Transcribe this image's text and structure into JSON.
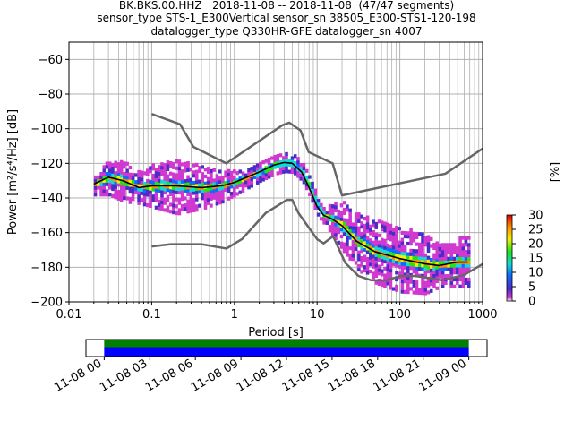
{
  "figure": {
    "title_lines": [
      "BK.BKS.00.HHZ   2018-11-08 -- 2018-11-08  (47/47 segments)",
      "sensor_type STS-1_E300Vertical sensor_sn 38505_E300-STS1-120-198",
      "datalogger_type Q330HR-GFE datalogger_sn 4007"
    ]
  },
  "chart_data": [
    {
      "type": "heatmap",
      "xlabel": "Period [s]",
      "ylabel": "Power [m²/s⁴/Hz] [dB]",
      "xscale": "log",
      "xlim": [
        0.01,
        1000
      ],
      "ylim": [
        -200,
        -50
      ],
      "xticks": [
        0.01,
        0.1,
        1,
        10,
        100,
        1000
      ],
      "xtick_labels": [
        "0.01",
        "0.1",
        "1",
        "10",
        "100",
        "1000"
      ],
      "yticks": [
        -200,
        -180,
        -160,
        -140,
        -120,
        -100,
        -80,
        -60
      ],
      "ytick_labels": [
        "−200",
        "−180",
        "−160",
        "−140",
        "−120",
        "−100",
        "−80",
        "−60"
      ],
      "grid": true,
      "colorbar": {
        "label": "[%]",
        "range": [
          0,
          30
        ],
        "ticks": [
          0,
          5,
          10,
          15,
          20,
          25,
          30
        ],
        "colors": [
          "#ffffff",
          "#d038d0",
          "#4a2cc8",
          "#0d6cff",
          "#14d8d8",
          "#1ee31e",
          "#f0f000",
          "#ff8c00",
          "#e00000"
        ]
      },
      "noise_model_high": {
        "color": "#666666",
        "period": [
          0.1,
          0.22,
          0.32,
          0.8,
          3.8,
          4.6,
          6.3,
          7.9,
          15.4,
          20,
          354.8,
          1000
        ],
        "db": [
          -91.5,
          -97.4,
          -110.5,
          -120,
          -98,
          -96.5,
          -101,
          -113.5,
          -120,
          -138.5,
          -126,
          -111.5
        ]
      },
      "noise_model_low": {
        "color": "#666666",
        "period": [
          0.1,
          0.17,
          0.4,
          0.8,
          1.24,
          2.4,
          4.3,
          5.0,
          6.0,
          10.0,
          12.0,
          15.6,
          21.9,
          31.6,
          45,
          70,
          101,
          154,
          328,
          600,
          1000
        ],
        "db": [
          -168,
          -166.7,
          -166.7,
          -169.2,
          -163.7,
          -148.6,
          -141.1,
          -141.1,
          -149.0,
          -163.8,
          -166.2,
          -162.1,
          -177.5,
          -185.0,
          -187.5,
          -187.5,
          -185.0,
          -185.0,
          -187.5,
          -184.4,
          -178.2
        ]
      },
      "mode_curve": {
        "color": "#000000",
        "period": [
          0.02,
          0.03,
          0.045,
          0.07,
          0.1,
          0.2,
          0.4,
          0.7,
          1.0,
          2.0,
          3.0,
          4.0,
          5.0,
          6.5,
          8.0,
          10.0,
          12.0,
          15.0,
          20.0,
          30.0,
          50.0,
          100.0,
          200.0,
          300.0,
          500.0,
          660.0
        ],
        "db": [
          -132,
          -128,
          -130,
          -134,
          -133,
          -133,
          -134,
          -133,
          -131,
          -125,
          -121,
          -119.5,
          -120,
          -125,
          -134,
          -145,
          -150,
          -152,
          -156,
          -165,
          -171,
          -175,
          -178,
          -179,
          -177,
          -177
        ]
      },
      "psd_bands": {
        "period": [
          0.02,
          0.03,
          0.045,
          0.07,
          0.1,
          0.2,
          0.4,
          0.7,
          1.0,
          2.0,
          3.0,
          4.0,
          5.0,
          6.5,
          8.0,
          10.0,
          12.0,
          15.0,
          20.0,
          30.0,
          50.0,
          100.0,
          200.0,
          300.0,
          500.0,
          660.0
        ],
        "inner_db": [
          3,
          4,
          4,
          3,
          4,
          4,
          4,
          3,
          3,
          2,
          2,
          2,
          2,
          2,
          2,
          2,
          2,
          3,
          4,
          4,
          5,
          5,
          5,
          4,
          4,
          4
        ],
        "outer_db": [
          3,
          6,
          8,
          6,
          8,
          12,
          8,
          6,
          4,
          3,
          3,
          3,
          3,
          3,
          3,
          3,
          3,
          6,
          10,
          12,
          13,
          14,
          12,
          8,
          10,
          10
        ]
      }
    },
    {
      "type": "timeline",
      "x_labels": [
        "11-08 00",
        "11-08 03",
        "11-08 06",
        "11-08 09",
        "11-08 12",
        "11-08 15",
        "11-08 18",
        "11-08 21",
        "11-09 00"
      ],
      "hours": [
        0,
        3,
        6,
        9,
        12,
        15,
        18,
        21,
        24
      ],
      "xlim_hours": [
        -1.2,
        25.2
      ],
      "data_coverage_hours": [
        0,
        24
      ],
      "coverage_colors": {
        "top": "#008000",
        "bottom": "#0000ff"
      }
    }
  ]
}
